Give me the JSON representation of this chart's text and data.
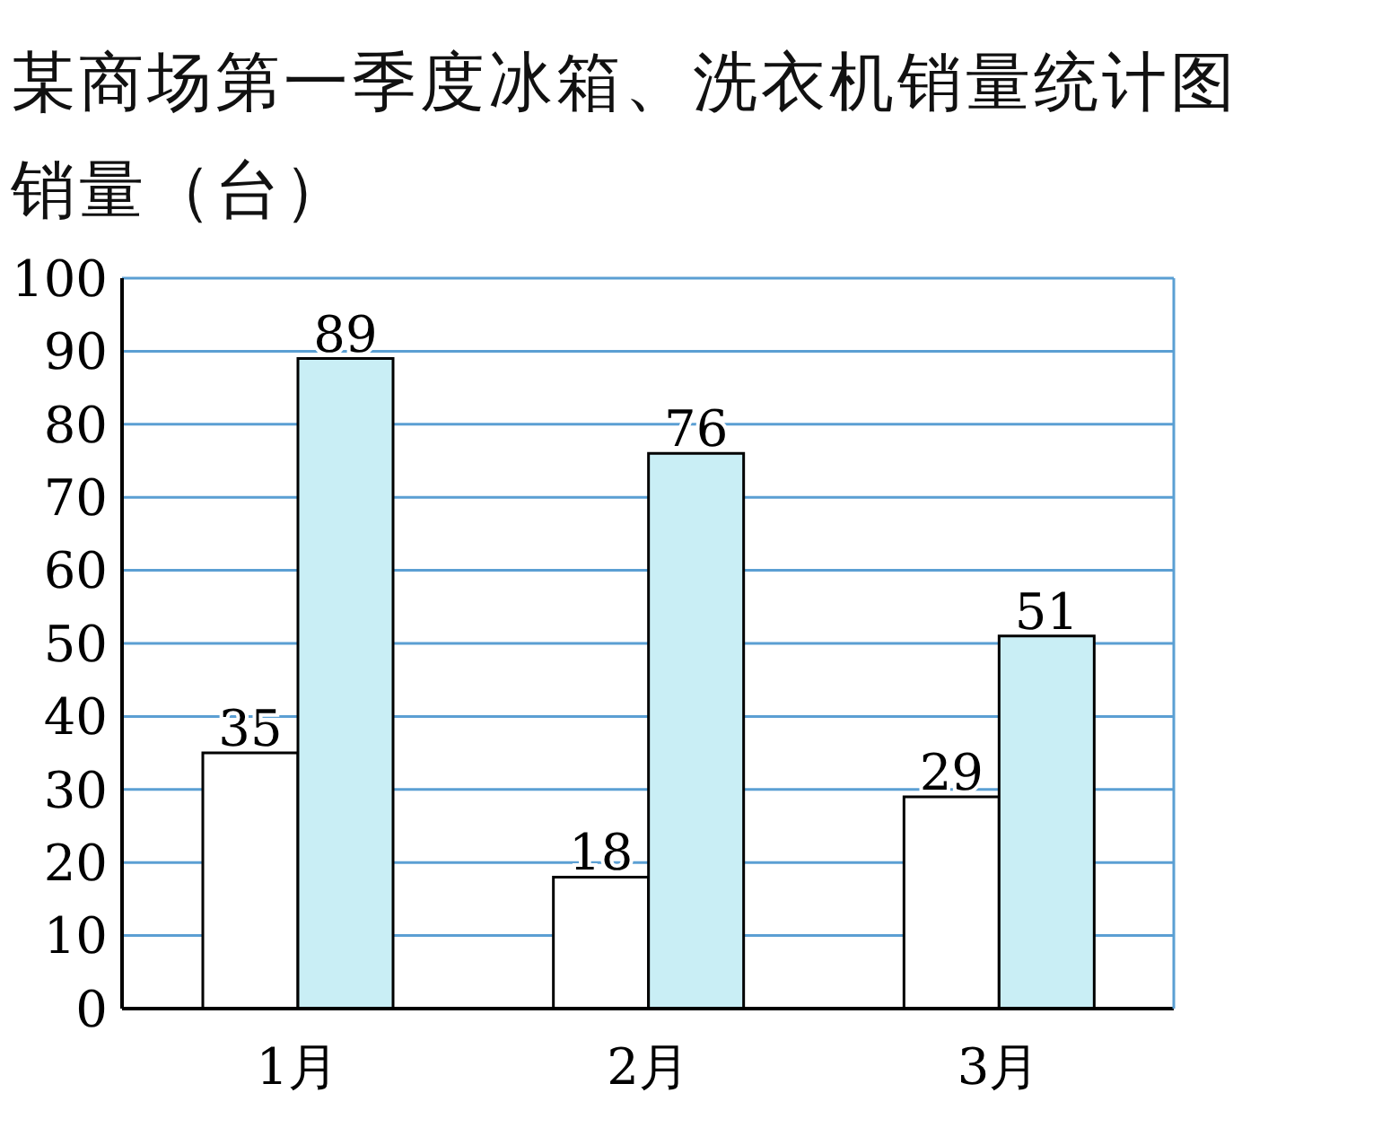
{
  "chart_data": {
    "type": "bar",
    "title": "某商场第一季度冰箱、洗衣机销量统计图",
    "ylabel": "销量（台）",
    "categories": [
      "1月",
      "2月",
      "3月"
    ],
    "series": [
      {
        "color": "#ffffff",
        "values": [
          35,
          18,
          29
        ]
      },
      {
        "color": "#c9eef5",
        "values": [
          89,
          76,
          51
        ]
      }
    ],
    "ylim": [
      0,
      100
    ],
    "yticks": [
      0,
      10,
      20,
      30,
      40,
      50,
      60,
      70,
      80,
      90,
      100
    ],
    "grid": "y",
    "data_labels": true,
    "legend": false
  }
}
